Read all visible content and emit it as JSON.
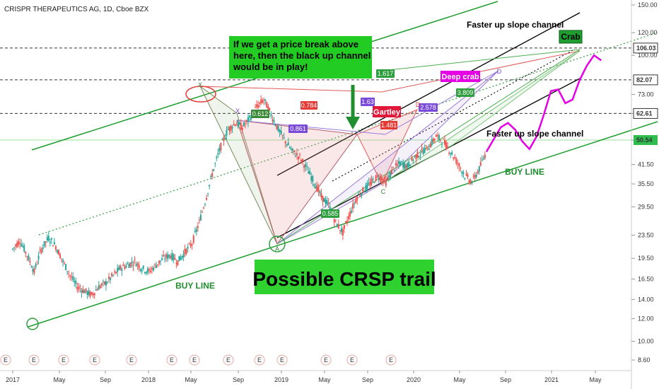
{
  "header": {
    "title": "CRISPR THERAPEUTICS AG, 1D, Cboe BZX"
  },
  "colors": {
    "up": "#26a69a",
    "down": "#ef5350",
    "channel_green": "#1e9e2e",
    "channel_black": "#000000",
    "magenta": "#e600e6",
    "badge_green": "#1e9e2e",
    "badge_red": "#e0193a",
    "callout_green": "#22cc22",
    "dotted_green": "#2e9e3e"
  },
  "chart_data": {
    "type": "candlestick",
    "title": "CRISPR THERAPEUTICS AG, 1D, Cboe BZX",
    "y_scale": "log",
    "y_ticks": [
      "150.00",
      "120.00",
      "100.00",
      "73.00",
      "62.61",
      "50.54",
      "41.50",
      "35.50",
      "29.50",
      "23.50",
      "19.50",
      "16.50",
      "14.00",
      "12.00",
      "10.00",
      "8.60"
    ],
    "x_ticks": [
      "2017",
      "May",
      "Sep",
      "2018",
      "May",
      "Sep",
      "2019",
      "May",
      "Sep",
      "2020",
      "May",
      "Sep",
      "2021",
      "May"
    ],
    "highlighted_levels": [
      {
        "label": "106.03",
        "bg": "#ffffff"
      },
      {
        "label": "82.07",
        "bg": "#ffffff"
      },
      {
        "label": "62.61",
        "bg": "#ffffff"
      },
      {
        "label": "50.54",
        "bg": "#2ebd4e"
      }
    ],
    "earnings_marker": "E",
    "series": [
      {
        "name": "price_path",
        "values": [
          [
            0,
            21
          ],
          [
            5,
            22.5
          ],
          [
            10,
            20
          ],
          [
            15,
            17.5
          ],
          [
            20,
            21
          ],
          [
            25,
            23
          ],
          [
            30,
            21.5
          ],
          [
            35,
            19
          ],
          [
            40,
            17
          ],
          [
            45,
            15.5
          ],
          [
            50,
            15
          ],
          [
            55,
            14.5
          ],
          [
            60,
            15.5
          ],
          [
            65,
            16
          ],
          [
            70,
            17
          ],
          [
            75,
            18
          ],
          [
            80,
            18.5
          ],
          [
            85,
            19
          ],
          [
            90,
            18
          ],
          [
            95,
            17.5
          ],
          [
            100,
            18.5
          ],
          [
            105,
            19.5
          ],
          [
            110,
            20
          ],
          [
            115,
            19
          ],
          [
            120,
            20.5
          ],
          [
            125,
            22
          ],
          [
            130,
            26
          ],
          [
            135,
            32
          ],
          [
            140,
            40
          ],
          [
            145,
            48
          ],
          [
            150,
            55
          ],
          [
            155,
            58
          ],
          [
            160,
            56
          ],
          [
            165,
            60
          ],
          [
            170,
            66
          ],
          [
            175,
            70
          ],
          [
            180,
            62
          ],
          [
            185,
            55
          ],
          [
            190,
            50
          ],
          [
            195,
            46
          ],
          [
            200,
            44
          ],
          [
            205,
            40
          ],
          [
            210,
            36
          ],
          [
            215,
            32
          ],
          [
            220,
            30
          ],
          [
            225,
            26
          ],
          [
            230,
            24
          ],
          [
            235,
            28
          ],
          [
            240,
            32
          ],
          [
            245,
            34
          ],
          [
            250,
            36
          ],
          [
            255,
            38
          ],
          [
            260,
            36
          ],
          [
            265,
            40
          ],
          [
            270,
            42
          ],
          [
            275,
            41
          ],
          [
            280,
            44
          ],
          [
            285,
            46
          ],
          [
            290,
            48
          ],
          [
            295,
            52
          ],
          [
            300,
            50
          ],
          [
            305,
            46
          ],
          [
            310,
            42
          ],
          [
            315,
            38
          ],
          [
            320,
            36
          ],
          [
            325,
            40
          ],
          [
            330,
            46
          ]
        ]
      },
      {
        "name": "projection_path",
        "values": [
          [
            330,
            46
          ],
          [
            340,
            56
          ],
          [
            345,
            58
          ],
          [
            350,
            55
          ],
          [
            355,
            50
          ],
          [
            360,
            47
          ],
          [
            365,
            52
          ],
          [
            370,
            62
          ],
          [
            375,
            75
          ],
          [
            380,
            76
          ],
          [
            385,
            68
          ],
          [
            390,
            70
          ],
          [
            395,
            82
          ],
          [
            400,
            92
          ],
          [
            405,
            100
          ],
          [
            410,
            96
          ]
        ]
      }
    ]
  },
  "annotations": {
    "callout": "If we get a price break above here, then the black up channel would be in play!",
    "faster_channel_top": "Faster up slope channel",
    "faster_channel_bottom": "Faster up slope channel",
    "buy_line_left": "BUY LINE",
    "buy_line_right": "BUY LINE",
    "crab": "Crab",
    "deep_crab": "Deep crab",
    "gartley": "Gartley",
    "title_banner": "Possible CRSP trail",
    "ratios": {
      "r0784": "0.784",
      "r0612": "0.612",
      "r0861": "0.861",
      "r1617": "1.617",
      "r163": "1.63",
      "r3809": "3.809",
      "r2578": "2.578",
      "r1481": "1.481",
      "r0585": "0.585"
    },
    "points": {
      "X": "X",
      "X2": "X",
      "A": "A",
      "C": "C",
      "D": "D",
      "D2": "D"
    }
  }
}
